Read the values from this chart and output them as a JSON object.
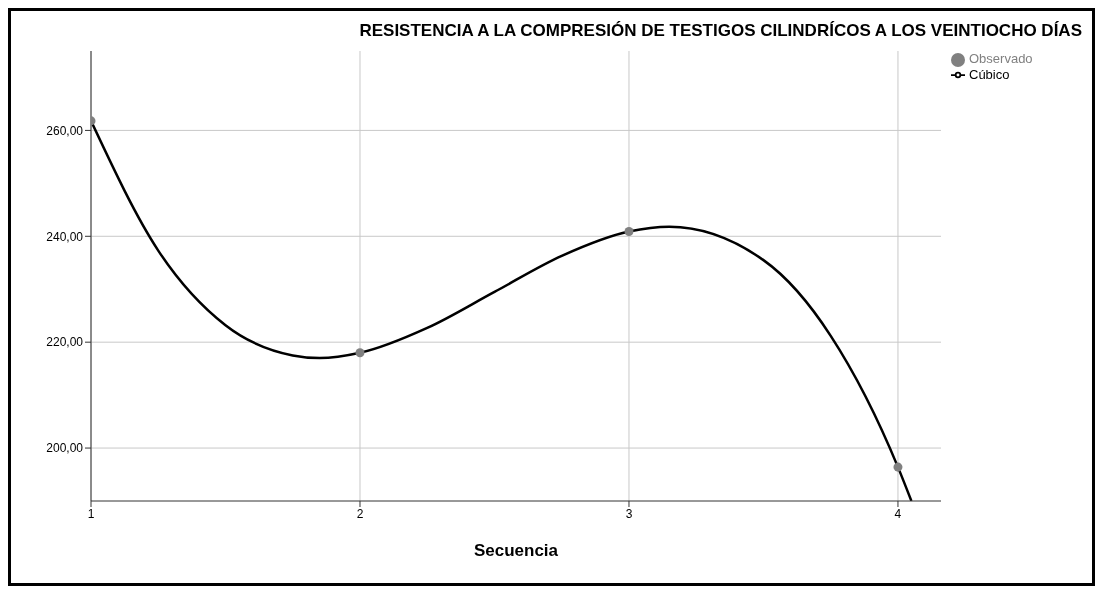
{
  "chart_data": {
    "type": "scatter",
    "title": "RESISTENCIA A LA COMPRESIÓN DE TESTIGOS CILINDRÍCOS A LOS VEINTIOCHO DÍAS",
    "xlabel": "Secuencia",
    "xlim": [
      1,
      4.16
    ],
    "xticks": [
      1,
      2,
      3,
      4
    ],
    "ylim": [
      190,
      275
    ],
    "yticks": [
      {
        "value": 200,
        "label": "200,00"
      },
      {
        "value": 220,
        "label": "220,00"
      },
      {
        "value": 240,
        "label": "240,00"
      },
      {
        "value": 260,
        "label": "260,00"
      }
    ],
    "grid": true,
    "legend": "top right",
    "series": [
      {
        "name": "Observado",
        "color": "#808080",
        "marker": "circle",
        "x": [
          1,
          2,
          3,
          4
        ],
        "values": [
          261.8,
          218.0,
          240.9,
          196.4
        ]
      },
      {
        "name": "Cúbico",
        "type": "line",
        "color": "#000000",
        "marker": "none",
        "line_style": "solid",
        "x": [
          1,
          1.25,
          1.5,
          1.75,
          1.85,
          2,
          2.25,
          2.5,
          2.75,
          3,
          3.15,
          3.5,
          3.75,
          4,
          4.05
        ],
        "values": [
          261.8,
          237.3,
          223.2,
          217.5,
          217.0,
          218.0,
          222.7,
          229.5,
          236.3,
          240.9,
          241.8,
          235.5,
          221.2,
          196.4,
          190.0
        ]
      }
    ]
  }
}
